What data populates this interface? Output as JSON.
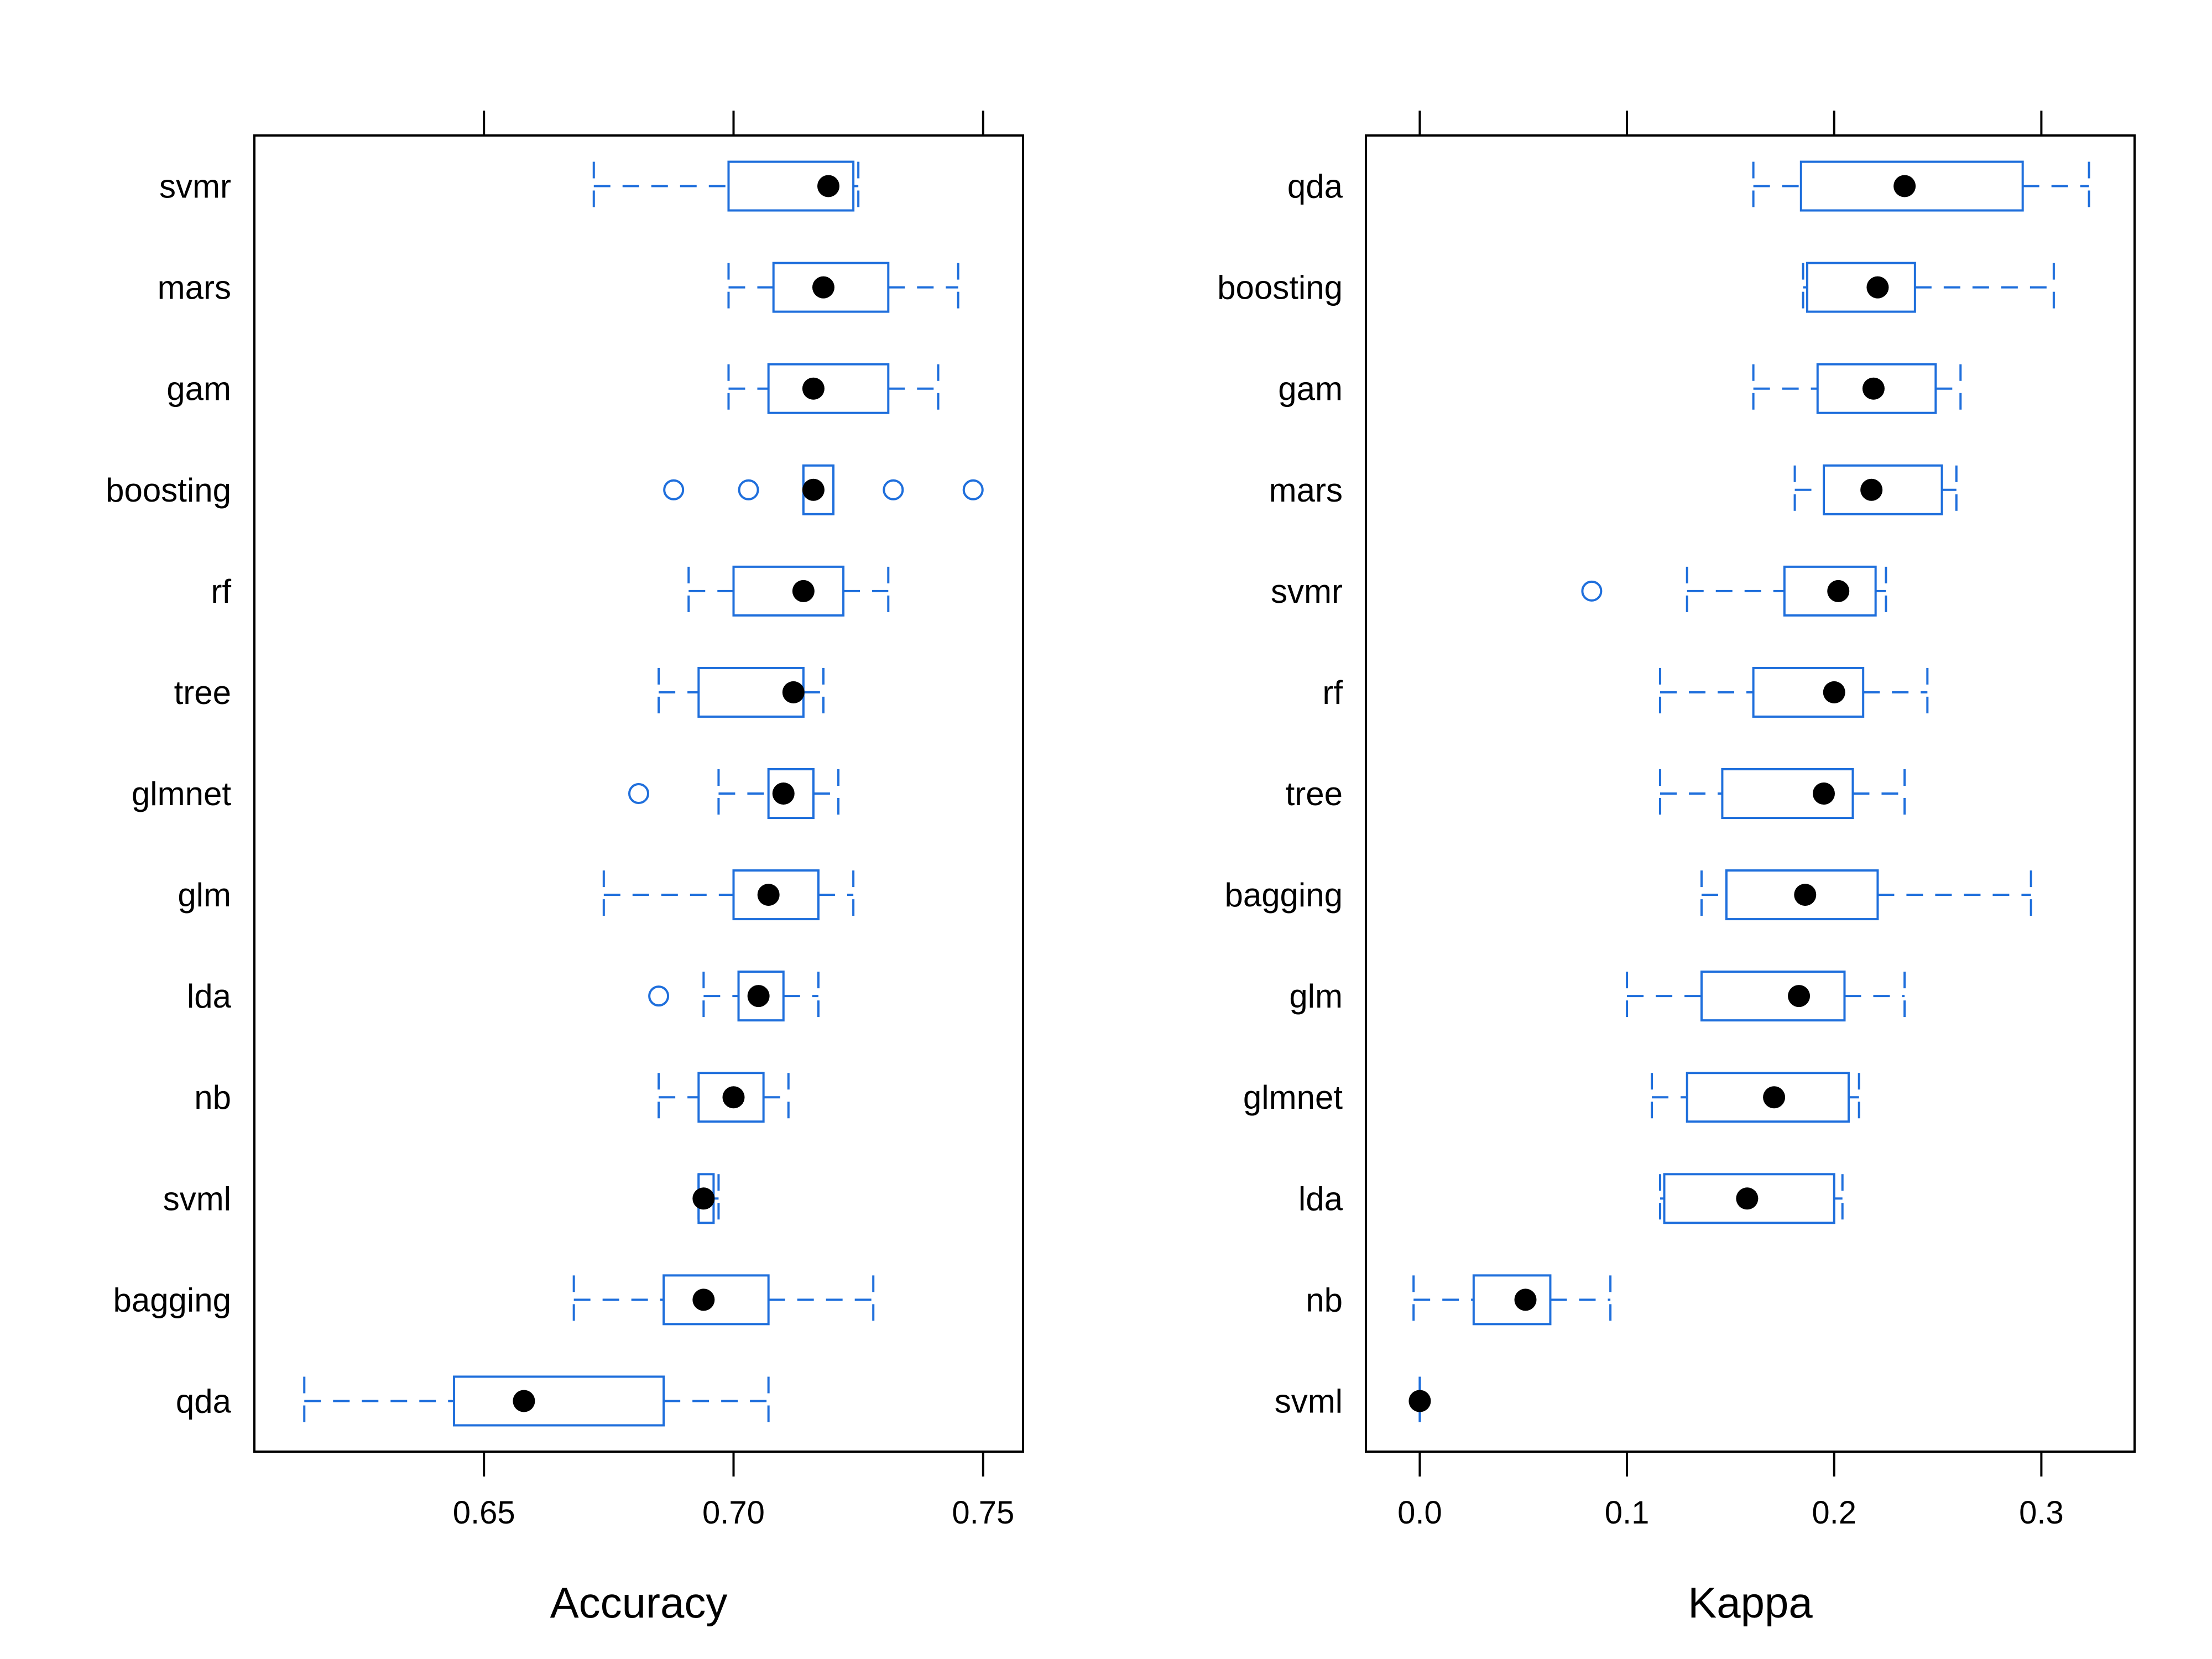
{
  "colors": {
    "box": "#1f6fdc",
    "median": "#000000",
    "frame": "#000000",
    "background": "#ffffff"
  },
  "chart_data": [
    {
      "type": "box",
      "xlabel": "Accuracy",
      "xlim": [
        0.604,
        0.758
      ],
      "ticks": [
        0.65,
        0.7,
        0.75
      ],
      "tick_labels": [
        "0.65",
        "0.70",
        "0.75"
      ],
      "tick_position": "top and bottom",
      "categories": [
        "svmr",
        "mars",
        "gam",
        "boosting",
        "rf",
        "tree",
        "glmnet",
        "glm",
        "lda",
        "nb",
        "svml",
        "bagging",
        "qda"
      ],
      "boxes": [
        {
          "name": "svmr",
          "min": 0.672,
          "q1": 0.699,
          "median": 0.719,
          "q3": 0.724,
          "max": 0.725,
          "outliers": []
        },
        {
          "name": "mars",
          "min": 0.699,
          "q1": 0.708,
          "median": 0.718,
          "q3": 0.731,
          "max": 0.745,
          "outliers": []
        },
        {
          "name": "gam",
          "min": 0.699,
          "q1": 0.707,
          "median": 0.716,
          "q3": 0.731,
          "max": 0.741,
          "outliers": []
        },
        {
          "name": "boosting",
          "min": 0.714,
          "q1": 0.714,
          "median": 0.716,
          "q3": 0.72,
          "max": 0.72,
          "outliers": [
            0.688,
            0.703,
            0.732,
            0.748
          ]
        },
        {
          "name": "rf",
          "min": 0.691,
          "q1": 0.7,
          "median": 0.714,
          "q3": 0.722,
          "max": 0.731,
          "outliers": []
        },
        {
          "name": "tree",
          "min": 0.685,
          "q1": 0.693,
          "median": 0.712,
          "q3": 0.714,
          "max": 0.718,
          "outliers": []
        },
        {
          "name": "glmnet",
          "min": 0.697,
          "q1": 0.707,
          "median": 0.71,
          "q3": 0.716,
          "max": 0.721,
          "outliers": [
            0.681
          ]
        },
        {
          "name": "glm",
          "min": 0.674,
          "q1": 0.7,
          "median": 0.707,
          "q3": 0.717,
          "max": 0.724,
          "outliers": []
        },
        {
          "name": "lda",
          "min": 0.694,
          "q1": 0.701,
          "median": 0.705,
          "q3": 0.71,
          "max": 0.717,
          "outliers": [
            0.685
          ]
        },
        {
          "name": "nb",
          "min": 0.685,
          "q1": 0.693,
          "median": 0.7,
          "q3": 0.706,
          "max": 0.711,
          "outliers": []
        },
        {
          "name": "svml",
          "min": 0.693,
          "q1": 0.693,
          "median": 0.694,
          "q3": 0.696,
          "max": 0.697,
          "outliers": []
        },
        {
          "name": "bagging",
          "min": 0.668,
          "q1": 0.686,
          "median": 0.694,
          "q3": 0.707,
          "max": 0.728,
          "outliers": []
        },
        {
          "name": "qda",
          "min": 0.614,
          "q1": 0.644,
          "median": 0.658,
          "q3": 0.686,
          "max": 0.707,
          "outliers": []
        }
      ]
    },
    {
      "type": "box",
      "xlabel": "Kappa",
      "xlim": [
        -0.026,
        0.345
      ],
      "ticks": [
        0.0,
        0.1,
        0.2,
        0.3
      ],
      "tick_labels": [
        "0.0",
        "0.1",
        "0.2",
        "0.3"
      ],
      "tick_position": "top and bottom",
      "categories": [
        "qda",
        "boosting",
        "gam",
        "mars",
        "svmr",
        "rf",
        "tree",
        "bagging",
        "glm",
        "glmnet",
        "lda",
        "nb",
        "svml"
      ],
      "boxes": [
        {
          "name": "qda",
          "min": 0.161,
          "q1": 0.184,
          "median": 0.234,
          "q3": 0.291,
          "max": 0.323,
          "outliers": []
        },
        {
          "name": "boosting",
          "min": 0.185,
          "q1": 0.187,
          "median": 0.221,
          "q3": 0.239,
          "max": 0.306,
          "outliers": []
        },
        {
          "name": "gam",
          "min": 0.161,
          "q1": 0.192,
          "median": 0.219,
          "q3": 0.249,
          "max": 0.261,
          "outliers": []
        },
        {
          "name": "mars",
          "min": 0.181,
          "q1": 0.195,
          "median": 0.218,
          "q3": 0.252,
          "max": 0.259,
          "outliers": []
        },
        {
          "name": "svmr",
          "min": 0.129,
          "q1": 0.176,
          "median": 0.202,
          "q3": 0.22,
          "max": 0.225,
          "outliers": [
            0.083
          ]
        },
        {
          "name": "rf",
          "min": 0.116,
          "q1": 0.161,
          "median": 0.2,
          "q3": 0.214,
          "max": 0.245,
          "outliers": []
        },
        {
          "name": "tree",
          "min": 0.116,
          "q1": 0.146,
          "median": 0.195,
          "q3": 0.209,
          "max": 0.234,
          "outliers": []
        },
        {
          "name": "bagging",
          "min": 0.136,
          "q1": 0.148,
          "median": 0.186,
          "q3": 0.221,
          "max": 0.295,
          "outliers": []
        },
        {
          "name": "glm",
          "min": 0.1,
          "q1": 0.136,
          "median": 0.183,
          "q3": 0.205,
          "max": 0.234,
          "outliers": []
        },
        {
          "name": "glmnet",
          "min": 0.112,
          "q1": 0.129,
          "median": 0.171,
          "q3": 0.207,
          "max": 0.212,
          "outliers": []
        },
        {
          "name": "lda",
          "min": 0.116,
          "q1": 0.118,
          "median": 0.158,
          "q3": 0.2,
          "max": 0.204,
          "outliers": []
        },
        {
          "name": "nb",
          "min": -0.003,
          "q1": 0.026,
          "median": 0.051,
          "q3": 0.063,
          "max": 0.092,
          "outliers": []
        },
        {
          "name": "svml",
          "min": 0.0,
          "q1": 0.0,
          "median": 0.0,
          "q3": 0.0,
          "max": 0.0,
          "outliers": []
        }
      ]
    }
  ]
}
